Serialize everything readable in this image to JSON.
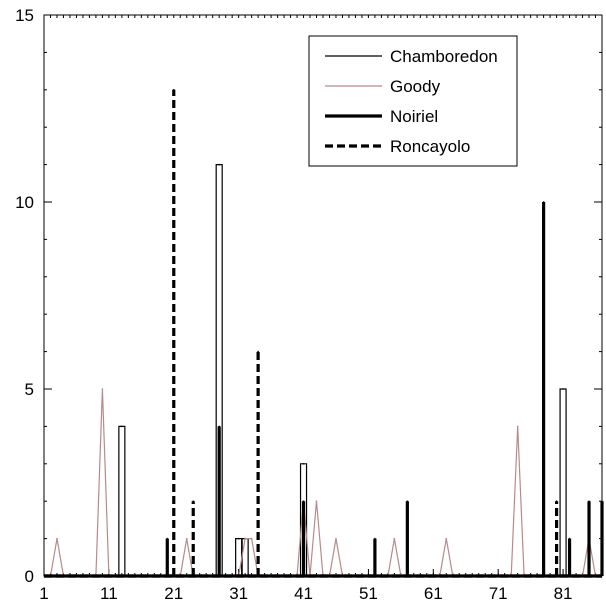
{
  "chart_data": {
    "type": "line",
    "title": "",
    "xlabel": "",
    "ylabel": "",
    "xlim": [
      1,
      87
    ],
    "ylim": [
      0,
      15
    ],
    "grid": false,
    "legend_position": "top-right",
    "x_ticks": [
      {
        "value": 1,
        "label": "1"
      },
      {
        "value": 11,
        "label": "11"
      },
      {
        "value": 21,
        "label": "21"
      },
      {
        "value": 31,
        "label": "31"
      },
      {
        "value": 41,
        "label": "41"
      },
      {
        "value": 51,
        "label": "51"
      },
      {
        "value": 61,
        "label": "61"
      },
      {
        "value": 71,
        "label": "71"
      },
      {
        "value": 81,
        "label": "81"
      }
    ],
    "y_ticks": [
      {
        "value": 0,
        "label": "0"
      },
      {
        "value": 5,
        "label": "5"
      },
      {
        "value": 10,
        "label": "10"
      },
      {
        "value": 15,
        "label": "15"
      }
    ],
    "series": [
      {
        "name": "Chamboredon",
        "color": "#000000",
        "style": "thin",
        "points": [
          [
            13,
            4
          ],
          [
            28,
            11
          ],
          [
            31,
            1
          ],
          [
            32,
            1
          ],
          [
            41,
            3
          ],
          [
            81,
            5
          ]
        ]
      },
      {
        "name": "Goody",
        "color": "#b88a8a",
        "style": "thin",
        "points": [
          [
            3,
            1
          ],
          [
            10,
            5
          ],
          [
            23,
            1
          ],
          [
            32,
            1
          ],
          [
            33,
            1
          ],
          [
            41,
            2
          ],
          [
            43,
            2
          ],
          [
            46,
            1
          ],
          [
            55,
            1
          ],
          [
            63,
            1
          ],
          [
            74,
            4
          ],
          [
            85,
            1
          ]
        ]
      },
      {
        "name": "Noiriel",
        "color": "#000000",
        "style": "thick",
        "points": [
          [
            20,
            1
          ],
          [
            28,
            4
          ],
          [
            41,
            2
          ],
          [
            52,
            1
          ],
          [
            57,
            2
          ],
          [
            78,
            10
          ],
          [
            82,
            1
          ],
          [
            85,
            2
          ],
          [
            87,
            2
          ]
        ]
      },
      {
        "name": "Roncayolo",
        "color": "#000000",
        "style": "dashed",
        "points": [
          [
            21,
            13
          ],
          [
            24,
            2
          ],
          [
            34,
            6
          ],
          [
            80,
            2
          ]
        ]
      }
    ]
  }
}
